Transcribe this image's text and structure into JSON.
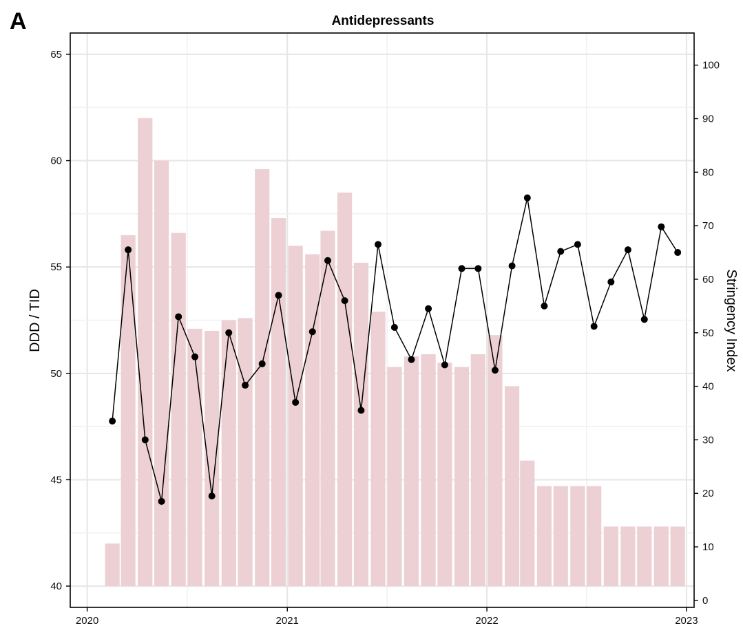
{
  "panel_label": "A",
  "chart_data": {
    "type": "bar+line",
    "title": "Antidepressants",
    "ylabel": "DDD / TID",
    "y2label": "Stringency Index",
    "ylim": [
      39,
      66
    ],
    "y2lim": [
      -1.3,
      106
    ],
    "yticks": [
      40,
      45,
      50,
      55,
      60,
      65
    ],
    "y2ticks": [
      0,
      10,
      20,
      30,
      40,
      50,
      60,
      70,
      80,
      90,
      100
    ],
    "xlim": [
      "2019-12-01",
      "2023-01-15"
    ],
    "xticks": [
      "2020",
      "2021",
      "2022",
      "2023"
    ],
    "grid": true,
    "x": [
      "2020-02",
      "2020-03",
      "2020-04",
      "2020-05",
      "2020-06",
      "2020-07",
      "2020-08",
      "2020-09",
      "2020-10",
      "2020-11",
      "2020-12",
      "2021-01",
      "2021-02",
      "2021-03",
      "2021-04",
      "2021-05",
      "2021-06",
      "2021-07",
      "2021-08",
      "2021-09",
      "2021-10",
      "2021-11",
      "2021-12",
      "2022-01",
      "2022-02",
      "2022-03",
      "2022-04",
      "2022-05",
      "2022-06",
      "2022-07",
      "2022-08",
      "2022-09",
      "2022-10",
      "2022-11",
      "2022-12"
    ],
    "series": [
      {
        "type": "bar",
        "axis": "left",
        "color": "#ecd0d3",
        "values": [
          42.0,
          56.5,
          62.0,
          60.0,
          56.6,
          52.1,
          52.0,
          52.5,
          52.6,
          59.6,
          57.3,
          56.0,
          55.6,
          56.7,
          58.5,
          55.2,
          52.9,
          50.3,
          50.8,
          50.9,
          50.5,
          50.3,
          50.9,
          51.8,
          49.4,
          45.9,
          44.7,
          44.7,
          44.7,
          44.7,
          42.8,
          42.8,
          42.8,
          42.8,
          42.8
        ]
      },
      {
        "type": "line",
        "axis": "right",
        "color": "#000000",
        "values": [
          33.5,
          65.5,
          30.0,
          18.5,
          53.0,
          45.5,
          19.5,
          50.0,
          40.2,
          44.2,
          57.0,
          37.0,
          50.2,
          63.5,
          56.0,
          35.5,
          66.5,
          51.0,
          45.0,
          54.5,
          44.0,
          62.0,
          62.0,
          43.0,
          62.5,
          75.2,
          55.0,
          65.2,
          66.5,
          51.2,
          59.5,
          65.5,
          52.5,
          69.8,
          65.0
        ]
      }
    ]
  }
}
